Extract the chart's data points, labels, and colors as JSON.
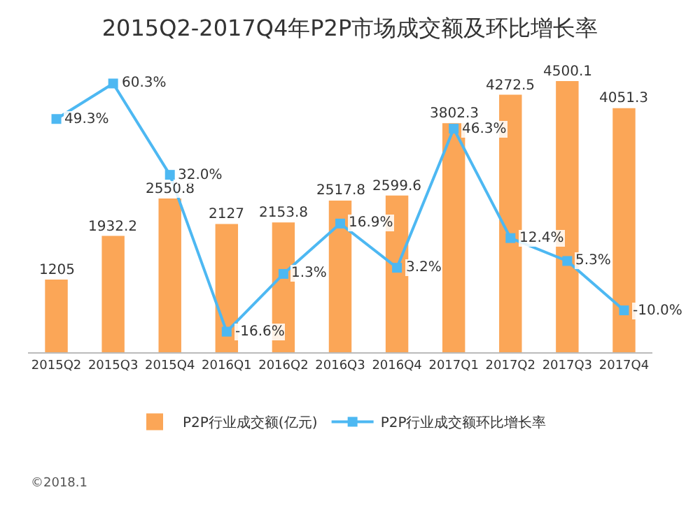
{
  "chart_data": {
    "type": "bar",
    "title": "2015Q2-2017Q4年P2P市场成交额及环比增长率",
    "categories": [
      "2015Q2",
      "2015Q3",
      "2015Q4",
      "2016Q1",
      "2016Q2",
      "2016Q3",
      "2016Q4",
      "2017Q1",
      "2017Q2",
      "2017Q3",
      "2017Q4"
    ],
    "series": [
      {
        "name": "P2P行业成交额(亿元)",
        "color": "#fba657",
        "values": [
          1205,
          1932.2,
          2550.8,
          2127,
          2153.8,
          2517.8,
          2599.6,
          3802.3,
          4272.5,
          4500.1,
          4051.3
        ],
        "value_labels": [
          "1205",
          "1932.2",
          "2550.8",
          "2127",
          "2153.8",
          "2517.8",
          "2599.6",
          "3802.3",
          "4272.5",
          "4500.1",
          "4051.3"
        ]
      },
      {
        "name": "P2P行业成交额环比增长率",
        "type": "line",
        "axis": "y2",
        "color": "#4db8f2",
        "marker": "square",
        "values": [
          49.3,
          60.3,
          32.0,
          -16.6,
          1.3,
          16.9,
          3.2,
          46.3,
          12.4,
          5.3,
          -10.0
        ],
        "value_labels": [
          "49.3%",
          "60.3%",
          "32.0%",
          "-16.6%",
          "1.3%",
          "16.9%",
          "3.2%",
          "46.3%",
          "12.4%",
          "5.3%",
          "-10.0%"
        ]
      }
    ],
    "grid": false,
    "legend": "bottom",
    "annotations": [
      "©2018.1"
    ]
  }
}
